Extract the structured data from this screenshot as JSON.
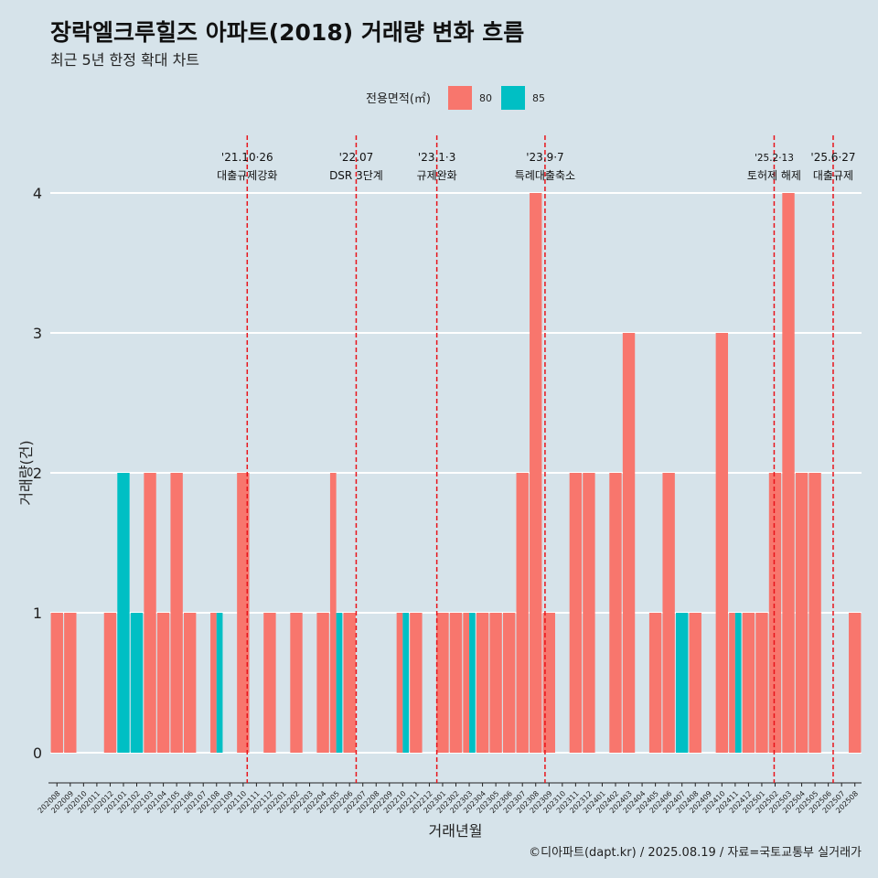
{
  "title": "장락엘크루힐즈 아파트(2018) 거래량 변화 흐름",
  "subtitle": "최근 5년 한정 확대 차트",
  "caption": "©디아파트(dapt.kr) / 2025.08.19 / 자료=국토교통부 실거래가",
  "colors": {
    "background": "#d6e3ea",
    "s80": "#f8766d",
    "s85": "#00bfc4",
    "event_line": "#e8141b",
    "grid": "#ffffff"
  },
  "chart_data": {
    "type": "bar",
    "xlabel": "거래년월",
    "ylabel": "거래량(건)",
    "ylim": [
      0,
      4
    ],
    "yticks": [
      0,
      1,
      2,
      3,
      4
    ],
    "grid": true,
    "legend": {
      "title": "전용면적(㎡)",
      "position": "top",
      "entries": [
        "80",
        "85"
      ]
    },
    "categories": [
      "202008",
      "202009",
      "202010",
      "202011",
      "202012",
      "202101",
      "202102",
      "202103",
      "202104",
      "202105",
      "202106",
      "202107",
      "202108",
      "202109",
      "202110",
      "202111",
      "202112",
      "202201",
      "202202",
      "202203",
      "202204",
      "202205",
      "202206",
      "202207",
      "202208",
      "202209",
      "202210",
      "202211",
      "202212",
      "202301",
      "202302",
      "202303",
      "202304",
      "202305",
      "202306",
      "202307",
      "202308",
      "202309",
      "202310",
      "202311",
      "202312",
      "202401",
      "202402",
      "202403",
      "202404",
      "202405",
      "202406",
      "202407",
      "202408",
      "202409",
      "202410",
      "202411",
      "202412",
      "202501",
      "202502",
      "202503",
      "202504",
      "202505",
      "202506",
      "202507",
      "202508"
    ],
    "series": [
      {
        "name": "80",
        "values": [
          1,
          1,
          0,
          0,
          1,
          0,
          0,
          2,
          1,
          2,
          1,
          0,
          1,
          0,
          2,
          0,
          1,
          0,
          1,
          0,
          1,
          2,
          1,
          0,
          0,
          0,
          1,
          1,
          0,
          1,
          1,
          1,
          1,
          1,
          1,
          2,
          4,
          1,
          0,
          2,
          2,
          0,
          2,
          3,
          0,
          1,
          2,
          0,
          1,
          0,
          3,
          1,
          1,
          1,
          2,
          4,
          2,
          2,
          0,
          0,
          1
        ]
      },
      {
        "name": "85",
        "values": [
          0,
          0,
          0,
          0,
          0,
          2,
          1,
          0,
          0,
          0,
          0,
          0,
          1,
          0,
          0,
          0,
          0,
          0,
          0,
          0,
          0,
          1,
          0,
          0,
          0,
          0,
          1,
          0,
          0,
          0,
          0,
          1,
          0,
          0,
          0,
          0,
          0,
          0,
          0,
          0,
          0,
          0,
          0,
          0,
          0,
          0,
          0,
          1,
          0,
          0,
          0,
          1,
          0,
          0,
          0,
          0,
          0,
          0,
          0,
          0,
          0
        ]
      }
    ],
    "events": [
      {
        "date": "2021-10-26",
        "label1": "'21.10·26",
        "label2": "대출규제강화",
        "small": false
      },
      {
        "date": "2022-07-01",
        "label1": "'22.07",
        "label2": "DSR 3단계",
        "small": false
      },
      {
        "date": "2023-01-03",
        "label1": "'23.1·3",
        "label2": "규제완화",
        "small": false
      },
      {
        "date": "2023-09-07",
        "label1": "'23.9·7",
        "label2": "특례대출축소",
        "small": false
      },
      {
        "date": "2025-02-13",
        "label1": "'25.2·13",
        "label2": "토허제 해제",
        "small": true
      },
      {
        "date": "2025-06-27",
        "label1": "'25.6·27",
        "label2": "대출규제",
        "small": false
      }
    ]
  }
}
